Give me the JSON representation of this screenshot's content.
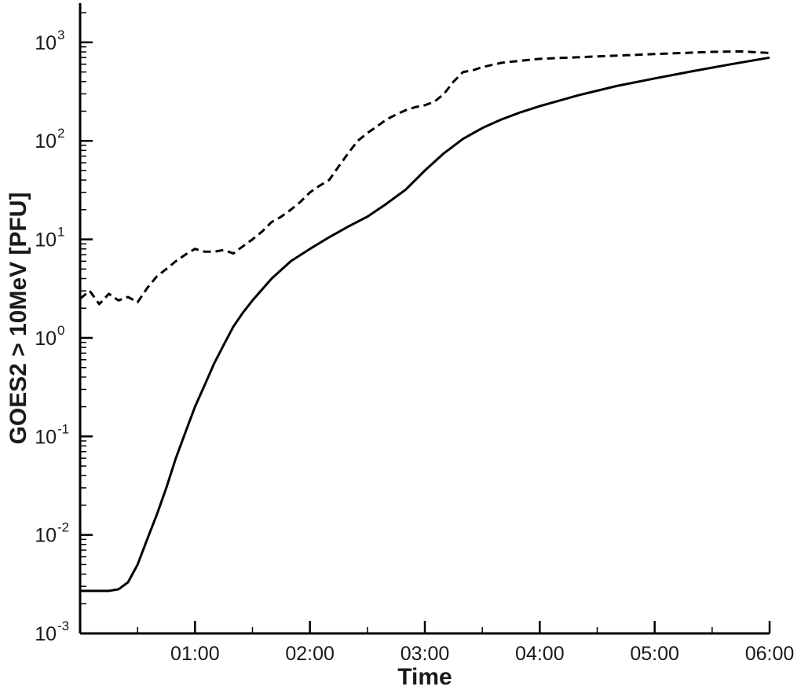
{
  "chart_data": {
    "type": "line",
    "title": "",
    "xlabel": "Time",
    "ylabel": "GOES2 > 10MeV [PFU]",
    "yscale": "log",
    "grid": false,
    "xlim": [
      "00:00",
      "06:00"
    ],
    "ylim": [
      0.001,
      2500
    ],
    "x_ticks": [
      "01:00",
      "02:00",
      "03:00",
      "04:00",
      "05:00",
      "06:00"
    ],
    "y_ticks": [
      {
        "value": 0.001,
        "base": "10",
        "exp": "-3"
      },
      {
        "value": 0.01,
        "base": "10",
        "exp": "-2"
      },
      {
        "value": 0.1,
        "base": "10",
        "exp": "-1"
      },
      {
        "value": 1,
        "base": "10",
        "exp": "0"
      },
      {
        "value": 10,
        "base": "10",
        "exp": "1"
      },
      {
        "value": 100,
        "base": "10",
        "exp": "2"
      },
      {
        "value": 1000,
        "base": "10",
        "exp": "3"
      }
    ],
    "series": [
      {
        "style": "solid",
        "color": "#000000",
        "x": [
          "00:00",
          "00:15",
          "00:20",
          "00:25",
          "00:30",
          "00:35",
          "00:40",
          "00:45",
          "00:50",
          "00:55",
          "01:00",
          "01:05",
          "01:10",
          "01:15",
          "01:20",
          "01:25",
          "01:30",
          "01:40",
          "01:50",
          "02:00",
          "02:10",
          "02:20",
          "02:30",
          "02:40",
          "02:50",
          "03:00",
          "03:10",
          "03:20",
          "03:30",
          "03:40",
          "03:50",
          "04:00",
          "04:20",
          "04:40",
          "05:00",
          "05:20",
          "05:40",
          "06:00"
        ],
        "y": [
          0.0027,
          0.0027,
          0.0028,
          0.0033,
          0.005,
          0.009,
          0.016,
          0.03,
          0.06,
          0.11,
          0.2,
          0.33,
          0.55,
          0.85,
          1.3,
          1.8,
          2.4,
          4.0,
          6.0,
          8.0,
          10.5,
          13.5,
          17,
          23,
          32,
          50,
          75,
          105,
          135,
          165,
          195,
          225,
          290,
          360,
          430,
          510,
          600,
          700
        ]
      },
      {
        "style": "dashed",
        "color": "#000000",
        "x": [
          "00:00",
          "00:05",
          "00:10",
          "00:15",
          "00:20",
          "00:25",
          "00:30",
          "00:35",
          "00:40",
          "00:45",
          "00:50",
          "00:55",
          "01:00",
          "01:05",
          "01:10",
          "01:15",
          "01:20",
          "01:25",
          "01:30",
          "01:35",
          "01:40",
          "01:45",
          "01:50",
          "01:55",
          "02:00",
          "02:05",
          "02:10",
          "02:15",
          "02:20",
          "02:25",
          "02:30",
          "02:35",
          "02:40",
          "02:45",
          "02:50",
          "02:55",
          "03:00",
          "03:05",
          "03:10",
          "03:15",
          "03:20",
          "03:25",
          "03:30",
          "03:40",
          "03:50",
          "04:00",
          "04:15",
          "04:30",
          "04:45",
          "05:00",
          "05:15",
          "05:30",
          "05:45",
          "06:00"
        ],
        "y": [
          2.5,
          3.0,
          2.2,
          2.8,
          2.4,
          2.6,
          2.3,
          3.2,
          4.2,
          5.0,
          6.0,
          7.0,
          8.0,
          7.5,
          7.5,
          7.8,
          7.2,
          8.5,
          10,
          12,
          15,
          17,
          20,
          24,
          30,
          35,
          40,
          55,
          75,
          100,
          120,
          140,
          165,
          185,
          205,
          220,
          230,
          250,
          300,
          400,
          500,
          520,
          560,
          620,
          650,
          680,
          700,
          720,
          740,
          760,
          780,
          800,
          810,
          780
        ]
      }
    ]
  }
}
